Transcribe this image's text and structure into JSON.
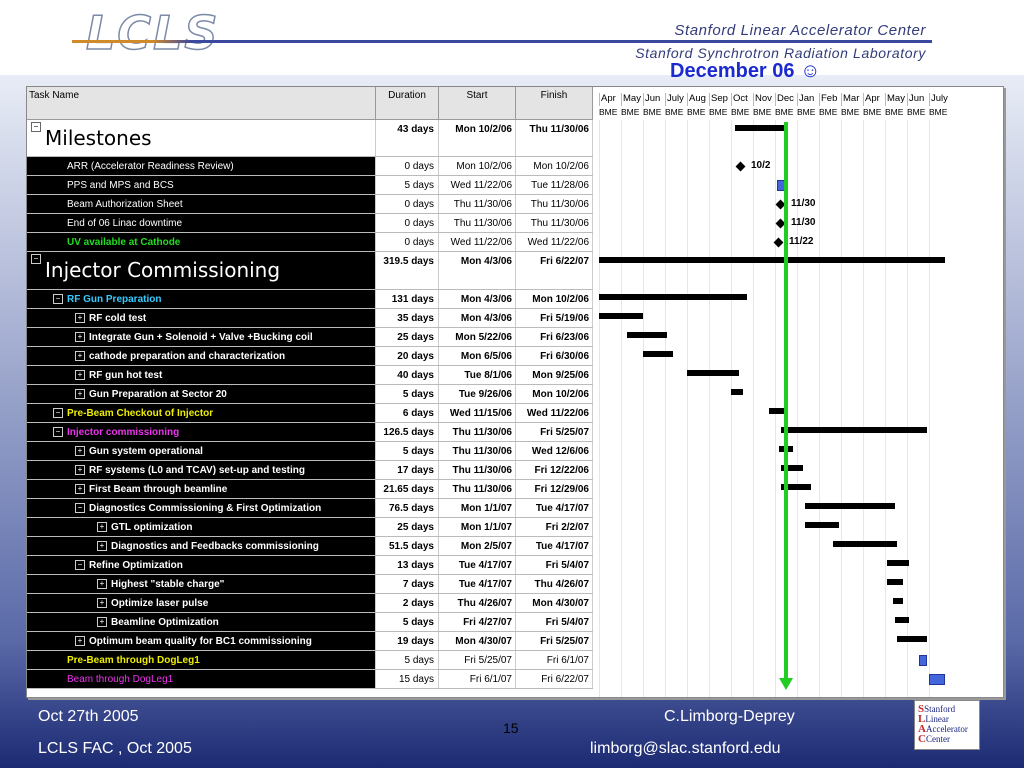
{
  "header": {
    "logo": "LCLS",
    "org_line1": "Stanford Linear Accelerator Center",
    "org_line2": "Stanford Synchrotron Radiation Laboratory",
    "callout": "December 06 ☺"
  },
  "columns": {
    "name": "Task Name",
    "duration": "Duration",
    "start": "Start",
    "finish": "Finish"
  },
  "months": [
    "Apr",
    "May",
    "Jun",
    "July",
    "Aug",
    "Sep",
    "Oct",
    "Nov",
    "Dec",
    "Jan",
    "Feb",
    "Mar",
    "Apr",
    "May",
    "Jun",
    "July"
  ],
  "tasks": [
    {
      "name": "Milestones",
      "dur": "43 days",
      "start": "Mon 10/2/06",
      "fin": "Thu 11/30/06"
    },
    {
      "name": "ARR (Accelerator Readiness Review)",
      "dur": "0 days",
      "start": "Mon 10/2/06",
      "fin": "Mon 10/2/06"
    },
    {
      "name": "PPS and MPS and BCS",
      "dur": "5 days",
      "start": "Wed 11/22/06",
      "fin": "Tue 11/28/06"
    },
    {
      "name": "Beam Authorization Sheet",
      "dur": "0 days",
      "start": "Thu 11/30/06",
      "fin": "Thu 11/30/06"
    },
    {
      "name": "End of 06 Linac downtime",
      "dur": "0 days",
      "start": "Thu 11/30/06",
      "fin": "Thu 11/30/06"
    },
    {
      "name": "UV available at Cathode",
      "dur": "0 days",
      "start": "Wed 11/22/06",
      "fin": "Wed 11/22/06"
    },
    {
      "name": "Injector Commissioning",
      "dur": "319.5 days",
      "start": "Mon 4/3/06",
      "fin": "Fri 6/22/07"
    },
    {
      "name": "RF Gun Preparation",
      "dur": "131 days",
      "start": "Mon 4/3/06",
      "fin": "Mon 10/2/06"
    },
    {
      "name": "RF cold test",
      "dur": "35 days",
      "start": "Mon 4/3/06",
      "fin": "Fri 5/19/06"
    },
    {
      "name": "Integrate Gun + Solenoid + Valve +Bucking coil",
      "dur": "25 days",
      "start": "Mon 5/22/06",
      "fin": "Fri 6/23/06"
    },
    {
      "name": "cathode preparation and characterization",
      "dur": "20 days",
      "start": "Mon 6/5/06",
      "fin": "Fri 6/30/06"
    },
    {
      "name": "RF gun hot test",
      "dur": "40 days",
      "start": "Tue 8/1/06",
      "fin": "Mon 9/25/06"
    },
    {
      "name": "Gun Preparation at Sector 20",
      "dur": "5 days",
      "start": "Tue 9/26/06",
      "fin": "Mon 10/2/06"
    },
    {
      "name": "Pre-Beam Checkout of Injector",
      "dur": "6 days",
      "start": "Wed 11/15/06",
      "fin": "Wed 11/22/06"
    },
    {
      "name": "Injector commissioning",
      "dur": "126.5 days",
      "start": "Thu 11/30/06",
      "fin": "Fri 5/25/07"
    },
    {
      "name": "Gun system operational",
      "dur": "5 days",
      "start": "Thu 11/30/06",
      "fin": "Wed 12/6/06"
    },
    {
      "name": "RF systems (L0 and TCAV) set-up and  testing",
      "dur": "17 days",
      "start": "Thu 11/30/06",
      "fin": "Fri 12/22/06"
    },
    {
      "name": "First Beam through beamline",
      "dur": "21.65 days",
      "start": "Thu 11/30/06",
      "fin": "Fri 12/29/06"
    },
    {
      "name": "Diagnostics Commissioning & First Optimization",
      "dur": "76.5 days",
      "start": "Mon 1/1/07",
      "fin": "Tue 4/17/07"
    },
    {
      "name": "GTL optimization",
      "dur": "25 days",
      "start": "Mon 1/1/07",
      "fin": "Fri 2/2/07"
    },
    {
      "name": "Diagnostics and Feedbacks commissioning",
      "dur": "51.5 days",
      "start": "Mon 2/5/07",
      "fin": "Tue 4/17/07"
    },
    {
      "name": "Refine Optimization",
      "dur": "13 days",
      "start": "Tue 4/17/07",
      "fin": "Fri 5/4/07"
    },
    {
      "name": "Highest \"stable charge\"",
      "dur": "7 days",
      "start": "Tue 4/17/07",
      "fin": "Thu 4/26/07"
    },
    {
      "name": "Optimize laser pulse",
      "dur": "2 days",
      "start": "Thu 4/26/07",
      "fin": "Mon 4/30/07"
    },
    {
      "name": "Beamline Optimization",
      "dur": "5 days",
      "start": "Fri 4/27/07",
      "fin": "Fri 5/4/07"
    },
    {
      "name": "Optimum beam quality for BC1 commissioning",
      "dur": "19 days",
      "start": "Mon 4/30/07",
      "fin": "Fri 5/25/07"
    },
    {
      "name": "Pre-Beam through DogLeg1",
      "dur": "5 days",
      "start": "Fri 5/25/07",
      "fin": "Fri 6/1/07"
    },
    {
      "name": "Beam through DogLeg1",
      "dur": "15 days",
      "start": "Fri 6/1/07",
      "fin": "Fri 6/22/07"
    }
  ],
  "milestone_labels": [
    "10/2",
    "11/30",
    "11/30",
    "11/22"
  ],
  "footer": {
    "date": "Oct 27th 2005",
    "event": "LCLS FAC , Oct 2005",
    "page": "15",
    "author": "C.Limborg-Deprey",
    "email": "limborg@slac.stanford.edu",
    "sl_logo": [
      "Stanford",
      "Linear",
      "Accelerator",
      "Center"
    ]
  }
}
